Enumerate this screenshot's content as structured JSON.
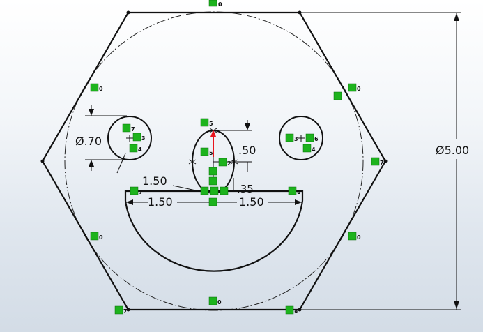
{
  "dimensions": {
    "outer_circle_diameter": "Ø5.00",
    "eye_diameter": "Ø.70",
    "nose_height": ".50",
    "nose_offset": ".35",
    "eye_spacing": "1.50",
    "mouth_left": "1.50",
    "mouth_right": "1.50"
  },
  "relations": {
    "rel_top": "0",
    "rel_bottom": "0",
    "rel_ul": "0",
    "rel_ur": "0",
    "rel_ll": "0",
    "rel_lr": "0",
    "rel_right": "7",
    "rel_bl": "7",
    "rel_br": "8",
    "eye_left_a": "7",
    "eye_left_b": "3",
    "eye_left_c": "4",
    "eye_right_a": "3",
    "eye_right_b": "6",
    "eye_right_c": "4",
    "nose_top": "5",
    "nose_mid": "5",
    "nose_right": "2",
    "mouth_l": "7",
    "mouth_r": "8"
  },
  "colors": {
    "line": "#000000",
    "relation": "#1db31d",
    "arrow": "#e8141d"
  }
}
